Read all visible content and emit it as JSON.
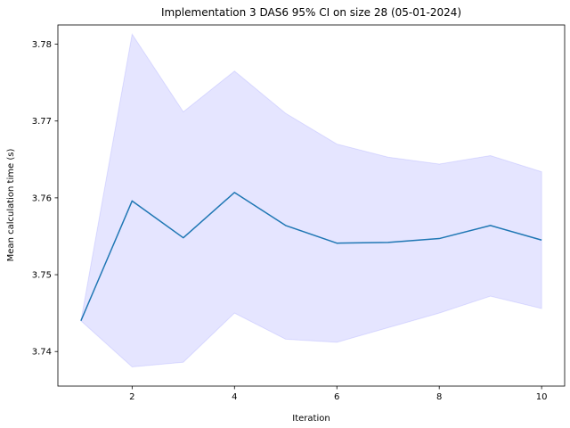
{
  "chart_data": {
    "type": "line",
    "title": "Implementation 3 DAS6 95% CI on size 28 (05-01-2024)",
    "xlabel": "Iteration",
    "ylabel": "Mean calculation time (s)",
    "xlim": [
      0.55,
      10.45
    ],
    "ylim": [
      3.7355,
      3.7825
    ],
    "xticks": [
      2,
      4,
      6,
      8,
      10
    ],
    "yticks": [
      3.74,
      3.75,
      3.76,
      3.77,
      3.78
    ],
    "ytick_labels": [
      "3.74",
      "3.75",
      "3.76",
      "3.77",
      "3.78"
    ],
    "grid": false,
    "series": [
      {
        "x": [
          1,
          2,
          3,
          4,
          5,
          6,
          7,
          8,
          9,
          10
        ],
        "values": [
          3.744,
          3.7596,
          3.7548,
          3.7607,
          3.7564,
          3.7541,
          3.7542,
          3.7547,
          3.7564,
          3.7545
        ],
        "ci_lower": [
          3.744,
          3.738,
          3.7386,
          3.745,
          3.7416,
          3.7412,
          3.7431,
          3.745,
          3.7472,
          3.7456
        ],
        "ci_upper": [
          3.744,
          3.7813,
          3.7712,
          3.7765,
          3.771,
          3.767,
          3.7653,
          3.7644,
          3.7655,
          3.7634
        ],
        "color": "#1f77b4",
        "band_color": "#0000ff"
      }
    ]
  }
}
